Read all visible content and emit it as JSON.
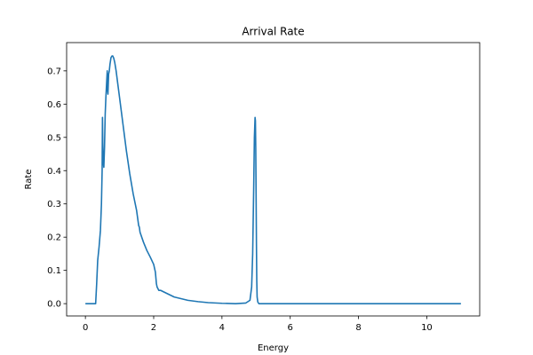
{
  "chart_data": {
    "type": "line",
    "title": "Arrival Rate",
    "xlabel": "Energy",
    "ylabel": "Rate",
    "xlim": [
      -0.55,
      11.55
    ],
    "ylim": [
      -0.037,
      0.785
    ],
    "xticks": [
      0,
      2,
      4,
      6,
      8,
      10
    ],
    "yticks": [
      0.0,
      0.1,
      0.2,
      0.3,
      0.4,
      0.5,
      0.6,
      0.7
    ],
    "xtick_labels": [
      "0",
      "2",
      "4",
      "6",
      "8",
      "10"
    ],
    "ytick_labels": [
      "0.0",
      "0.1",
      "0.2",
      "0.3",
      "0.4",
      "0.5",
      "0.6",
      "0.7"
    ],
    "grid": false,
    "legend": "none",
    "series": [
      {
        "color": "#1f77b4",
        "x": [
          0,
          0.3,
          0.33,
          0.36,
          0.4,
          0.44,
          0.47,
          0.49,
          0.5,
          0.51,
          0.52,
          0.54,
          0.56,
          0.58,
          0.6,
          0.62,
          0.64,
          0.65,
          0.66,
          0.67,
          0.68,
          0.7,
          0.72,
          0.75,
          0.78,
          0.8,
          0.83,
          0.86,
          0.9,
          0.95,
          1.0,
          1.1,
          1.2,
          1.3,
          1.4,
          1.5,
          1.54,
          1.56,
          1.58,
          1.6,
          1.7,
          1.8,
          1.9,
          2.0,
          2.05,
          2.08,
          2.1,
          2.15,
          2.2,
          2.3,
          2.4,
          2.5,
          2.6,
          2.8,
          3.0,
          3.3,
          3.6,
          4.0,
          4.4,
          4.7,
          4.82,
          4.87,
          4.9,
          4.93,
          4.95,
          4.97,
          4.98,
          4.99,
          5.0,
          5.01,
          5.02,
          5.03,
          5.05,
          5.08,
          5.12,
          5.2,
          6.0,
          8.0,
          11.0
        ],
        "y": [
          0.0,
          0.0,
          0.06,
          0.13,
          0.17,
          0.22,
          0.3,
          0.4,
          0.56,
          0.48,
          0.43,
          0.41,
          0.47,
          0.57,
          0.62,
          0.66,
          0.7,
          0.64,
          0.63,
          0.66,
          0.69,
          0.7,
          0.72,
          0.74,
          0.745,
          0.745,
          0.738,
          0.725,
          0.7,
          0.66,
          0.62,
          0.54,
          0.46,
          0.39,
          0.33,
          0.28,
          0.25,
          0.235,
          0.23,
          0.215,
          0.185,
          0.16,
          0.14,
          0.118,
          0.095,
          0.06,
          0.05,
          0.04,
          0.04,
          0.035,
          0.03,
          0.025,
          0.02,
          0.015,
          0.01,
          0.006,
          0.003,
          0.001,
          0.0,
          0.002,
          0.01,
          0.05,
          0.15,
          0.35,
          0.5,
          0.56,
          0.55,
          0.47,
          0.33,
          0.18,
          0.07,
          0.02,
          0.005,
          0.0,
          0.0,
          0.0,
          0.0,
          0.0,
          0.0
        ]
      }
    ]
  },
  "colors": {
    "background": "#ffffff",
    "axes": "#000000",
    "line": "#1f77b4"
  }
}
